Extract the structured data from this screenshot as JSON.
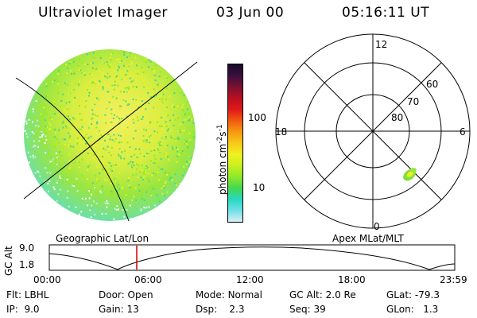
{
  "header": {
    "instrument": "Ultraviolet Imager",
    "date": "03 Jun 00",
    "time": "05:16:11 UT"
  },
  "colorbar": {
    "label_main": "photon cm",
    "label_sup1": "-2",
    "label_mid": "s",
    "label_sup2": "-1",
    "ticks": [
      "100",
      "10"
    ],
    "colors": [
      "#1a0a2a",
      "#3a1040",
      "#7a1030",
      "#b81020",
      "#e01818",
      "#f25a10",
      "#f59a10",
      "#f8c818",
      "#f0f020",
      "#c8f020",
      "#8ee82a",
      "#44d850",
      "#28d8c0",
      "#70e0e8",
      "#d8f0f4"
    ]
  },
  "polar": {
    "mlt_labels": {
      "top": "12",
      "left": "18",
      "right": "6",
      "bottom": "0"
    },
    "lat_labels": [
      "60",
      "70",
      "80"
    ]
  },
  "timeline": {
    "left_title": "Geographic Lat/Lon",
    "right_title": "Apex MLat/MLT",
    "axis_title": "GC Alt",
    "y_ticks": [
      "9.0",
      "1.8"
    ],
    "x_ticks": [
      "00:00",
      "06:00",
      "12:00",
      "18:00",
      "23:59"
    ],
    "marker_color": "#cc0000"
  },
  "footer": {
    "flt_label": "Flt:",
    "flt_value": "LBHL",
    "ip_label": "IP:",
    "ip_value": "9.0",
    "door_label": "Door:",
    "door_value": "Open",
    "gain_label": "Gain:",
    "gain_value": "13",
    "mode_label": "Mode:",
    "mode_value": "Normal",
    "dsp_label": "Dsp:",
    "dsp_value": "2.3",
    "gcalt_label": "GC Alt:",
    "gcalt_value": "2.0 Re",
    "seq_label": "Seq:",
    "seq_value": "39",
    "glat_label": "GLat:",
    "glat_value": "-79.3",
    "glon_label": "GLon:",
    "glon_value": "1.3"
  }
}
